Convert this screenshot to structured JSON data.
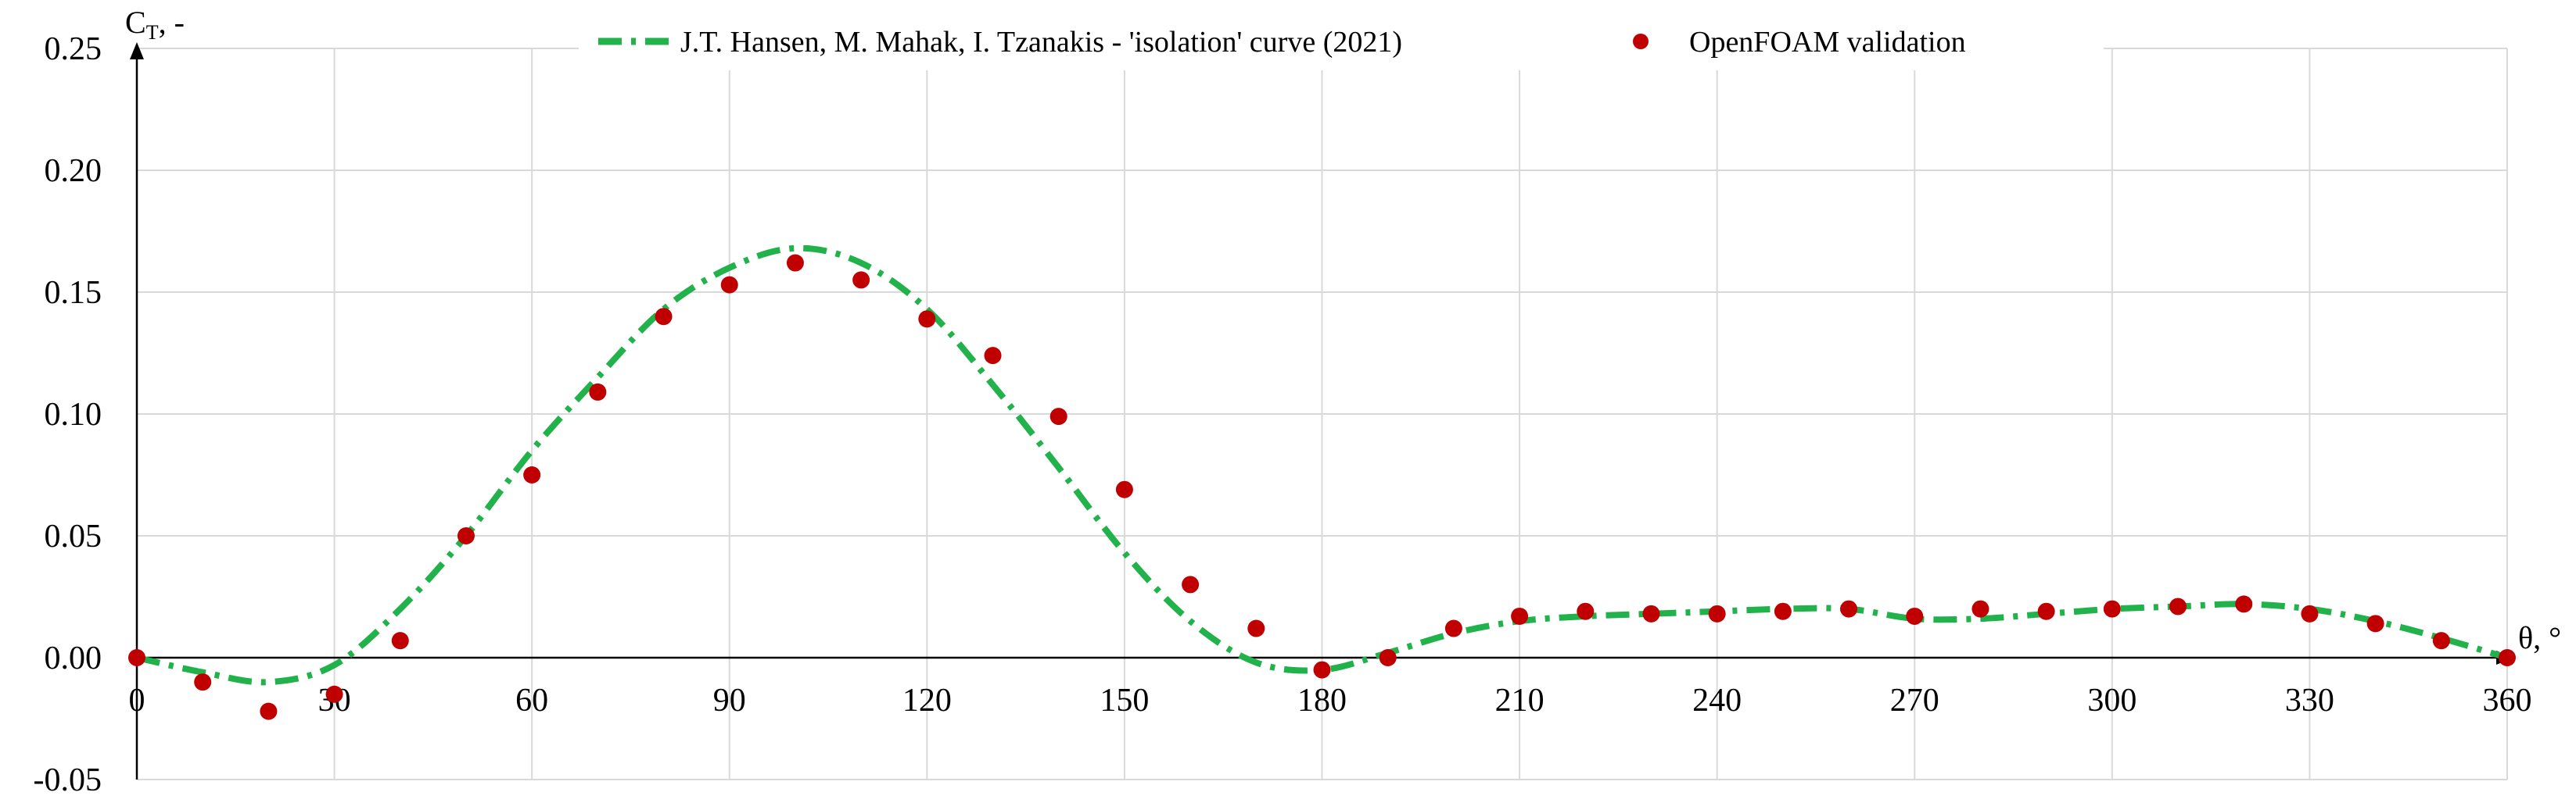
{
  "chart_data": {
    "type": "line",
    "title": "",
    "xlabel": "θ, °",
    "ylabel": "CT, -",
    "ylabel_main": "C",
    "ylabel_sub": "T",
    "ylabel_suffix": ", -",
    "xlim": [
      0,
      360
    ],
    "ylim": [
      -0.05,
      0.25
    ],
    "grid": true,
    "legend_position": "top",
    "x_ticks": [
      "0",
      "30",
      "60",
      "90",
      "120",
      "150",
      "180",
      "210",
      "240",
      "270",
      "300",
      "330",
      "360"
    ],
    "y_ticks": [
      "-0.05",
      "0.00",
      "0.05",
      "0.10",
      "0.15",
      "0.20",
      "0.25"
    ],
    "series": [
      {
        "name": "J.T. Hansen, M. Mahak, I. Tzanakis - 'isolation' curve (2021)",
        "style": "dash-dot line",
        "color": "#21b24b",
        "x": [
          0,
          10,
          20,
          30,
          40,
          50,
          60,
          70,
          80,
          90,
          100,
          110,
          120,
          130,
          140,
          150,
          160,
          170,
          180,
          190,
          200,
          210,
          220,
          230,
          240,
          250,
          260,
          270,
          280,
          290,
          300,
          310,
          320,
          330,
          340,
          350,
          360
        ],
        "y": [
          0.0,
          -0.006,
          -0.01,
          -0.003,
          0.02,
          0.05,
          0.085,
          0.115,
          0.143,
          0.16,
          0.168,
          0.162,
          0.143,
          0.112,
          0.078,
          0.043,
          0.015,
          -0.002,
          -0.005,
          0.002,
          0.01,
          0.015,
          0.017,
          0.018,
          0.019,
          0.02,
          0.02,
          0.016,
          0.016,
          0.018,
          0.02,
          0.021,
          0.022,
          0.02,
          0.015,
          0.008,
          0.0
        ]
      },
      {
        "name": "OpenFOAM validation",
        "style": "markers",
        "color": "#c00000",
        "x": [
          0,
          10,
          20,
          30,
          40,
          50,
          60,
          70,
          80,
          90,
          100,
          110,
          120,
          130,
          140,
          150,
          160,
          170,
          180,
          190,
          200,
          210,
          220,
          230,
          240,
          250,
          260,
          270,
          280,
          290,
          300,
          310,
          320,
          330,
          340,
          350,
          360
        ],
        "y": [
          0.0,
          -0.01,
          -0.022,
          -0.015,
          0.007,
          0.05,
          0.075,
          0.109,
          0.14,
          0.153,
          0.162,
          0.155,
          0.139,
          0.124,
          0.099,
          0.069,
          0.03,
          0.012,
          -0.005,
          0.0,
          0.012,
          0.017,
          0.019,
          0.018,
          0.018,
          0.019,
          0.02,
          0.017,
          0.02,
          0.019,
          0.02,
          0.021,
          0.022,
          0.018,
          0.014,
          0.007,
          0.0
        ]
      }
    ]
  }
}
